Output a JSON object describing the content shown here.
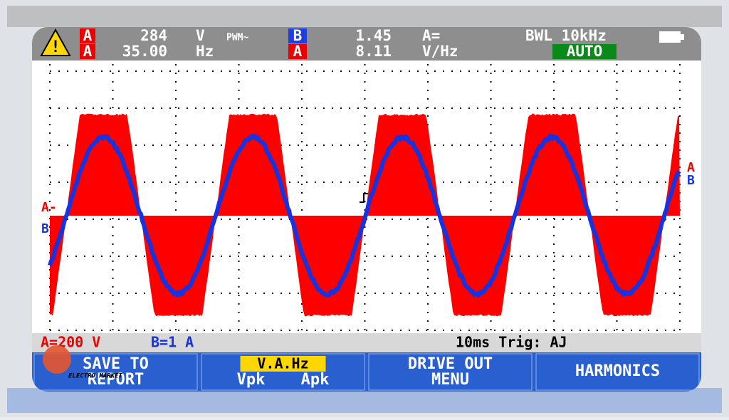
{
  "header": {
    "row1": {
      "channel_a": "A",
      "reading_a": "284",
      "unit_a": "V",
      "mode_a": "PWM~",
      "channel_b": "B",
      "reading_b": "1.45",
      "unit_b": "A=",
      "filter": "BWL 10kHz"
    },
    "row2": {
      "channel_a": "A",
      "reading_a": "35.00",
      "unit_a": "Hz",
      "channel_b": "A",
      "reading_b": "8.11",
      "unit_b": "V/Hz",
      "range_mode": "AUTO"
    }
  },
  "markers": {
    "left_a": "A-",
    "left_b": "B",
    "right_a": "A",
    "right_b": "B"
  },
  "status": {
    "scale_a": "A=200 V",
    "scale_b": "B=1 A",
    "timebase": "10ms Trig: AJ"
  },
  "buttons": [
    {
      "label": "SAVE TO REPORT"
    },
    {
      "label": "V.A.Hz",
      "sub": [
        "Vpk",
        "Apk"
      ]
    },
    {
      "label": "DRIVE OUT MENU"
    },
    {
      "label": "HARMONICS"
    }
  ],
  "logo": "ELECTRO MARKET"
}
